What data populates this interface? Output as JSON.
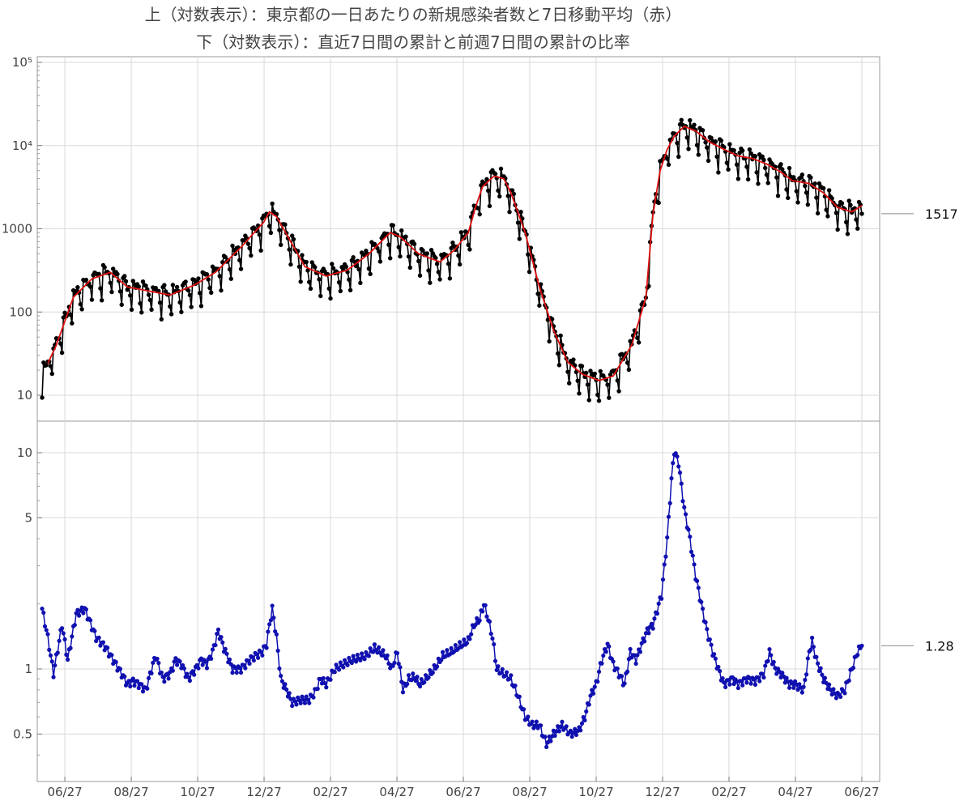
{
  "titles": {
    "top": "上（対数表示）：東京都の一日あたりの新規感染者数と7日移動平均（赤）",
    "bottom": "下（対数表示）：直近7日間の累計と前週7日間の累計の比率"
  },
  "colors": {
    "daily": "#000000",
    "average": "#e01010",
    "ratio": "#1010b0",
    "grid": "#d9d9d9",
    "frame": "#9a9a9a"
  },
  "chart_data": [
    {
      "type": "line",
      "name": "top",
      "yscale": "log",
      "ylim": [
        5,
        100000
      ],
      "x_days": 408,
      "x_ticks": [
        "06/27",
        "08/27",
        "10/27",
        "12/27",
        "02/27",
        "04/27",
        "06/27",
        "08/27",
        "10/27",
        "12/27",
        "02/27",
        "04/27",
        "06/27"
      ],
      "y_ticks": [
        "10",
        "100",
        "1000",
        "10⁴",
        "10⁵"
      ],
      "anchors_avg": [
        [
          0,
          17
        ],
        [
          10,
          40
        ],
        [
          22,
          150
        ],
        [
          35,
          250
        ],
        [
          48,
          300
        ],
        [
          60,
          200
        ],
        [
          90,
          160
        ],
        [
          107,
          210
        ],
        [
          122,
          300
        ],
        [
          140,
          600
        ],
        [
          156,
          1200
        ],
        [
          160,
          1600
        ],
        [
          165,
          1400
        ],
        [
          175,
          700
        ],
        [
          185,
          350
        ],
        [
          200,
          270
        ],
        [
          215,
          320
        ],
        [
          230,
          500
        ],
        [
          245,
          900
        ],
        [
          252,
          800
        ],
        [
          265,
          500
        ],
        [
          280,
          400
        ],
        [
          290,
          550
        ],
        [
          300,
          900
        ],
        [
          305,
          1800
        ],
        [
          310,
          3200
        ],
        [
          318,
          4300
        ],
        [
          325,
          4000
        ],
        [
          330,
          2700
        ],
        [
          340,
          900
        ],
        [
          350,
          200
        ],
        [
          360,
          60
        ],
        [
          370,
          25
        ],
        [
          380,
          18
        ],
        [
          392,
          15
        ],
        [
          402,
          17
        ],
        [
          415,
          40
        ],
        [
          425,
          150
        ],
        [
          430,
          1500
        ],
        [
          435,
          5000
        ],
        [
          440,
          9000
        ],
        [
          445,
          13000
        ],
        [
          452,
          17000
        ],
        [
          460,
          15000
        ],
        [
          470,
          11000
        ],
        [
          480,
          9000
        ],
        [
          490,
          7500
        ],
        [
          500,
          7000
        ],
        [
          510,
          6000
        ],
        [
          520,
          4800
        ],
        [
          528,
          3800
        ],
        [
          540,
          3500
        ],
        [
          550,
          2700
        ],
        [
          560,
          1800
        ],
        [
          570,
          1600
        ],
        [
          577,
          1900
        ]
      ],
      "end_label": "1517",
      "end_value": 1517
    },
    {
      "type": "line",
      "name": "bottom",
      "yscale": "log",
      "ylim": [
        0.3,
        12
      ],
      "y_ticks": [
        "0.5",
        "1",
        "5",
        "10"
      ],
      "anchors_ratio": [
        [
          0,
          1.9
        ],
        [
          4,
          1.4
        ],
        [
          8,
          0.95
        ],
        [
          14,
          1.6
        ],
        [
          18,
          1.1
        ],
        [
          24,
          1.8
        ],
        [
          30,
          1.9
        ],
        [
          38,
          1.4
        ],
        [
          45,
          1.25
        ],
        [
          50,
          1.1
        ],
        [
          56,
          0.95
        ],
        [
          60,
          0.85
        ],
        [
          64,
          0.88
        ],
        [
          68,
          0.85
        ],
        [
          73,
          0.8
        ],
        [
          78,
          1.05
        ],
        [
          80,
          1.15
        ],
        [
          85,
          0.9
        ],
        [
          90,
          0.95
        ],
        [
          94,
          1.1
        ],
        [
          98,
          1.05
        ],
        [
          103,
          0.9
        ],
        [
          108,
          1.0
        ],
        [
          112,
          1.1
        ],
        [
          116,
          1.05
        ],
        [
          120,
          1.2
        ],
        [
          124,
          1.5
        ],
        [
          128,
          1.25
        ],
        [
          134,
          1.0
        ],
        [
          140,
          1.0
        ],
        [
          146,
          1.1
        ],
        [
          150,
          1.15
        ],
        [
          155,
          1.2
        ],
        [
          158,
          1.3
        ],
        [
          160,
          1.6
        ],
        [
          162,
          1.9
        ],
        [
          165,
          1.4
        ],
        [
          168,
          0.9
        ],
        [
          172,
          0.8
        ],
        [
          176,
          0.7
        ],
        [
          182,
          0.72
        ],
        [
          188,
          0.72
        ],
        [
          192,
          0.78
        ],
        [
          196,
          0.9
        ],
        [
          200,
          0.85
        ],
        [
          206,
          1.0
        ],
        [
          212,
          1.05
        ],
        [
          218,
          1.1
        ],
        [
          222,
          1.12
        ],
        [
          228,
          1.15
        ],
        [
          234,
          1.25
        ],
        [
          238,
          1.2
        ],
        [
          242,
          1.15
        ],
        [
          246,
          1.0
        ],
        [
          250,
          1.2
        ],
        [
          254,
          0.8
        ],
        [
          258,
          0.9
        ],
        [
          262,
          0.92
        ],
        [
          266,
          0.85
        ],
        [
          270,
          0.9
        ],
        [
          276,
          1.0
        ],
        [
          282,
          1.15
        ],
        [
          288,
          1.2
        ],
        [
          294,
          1.28
        ],
        [
          300,
          1.35
        ],
        [
          304,
          1.6
        ],
        [
          308,
          1.7
        ],
        [
          311,
          2.0
        ],
        [
          314,
          1.7
        ],
        [
          317,
          1.4
        ],
        [
          320,
          1.0
        ],
        [
          325,
          0.95
        ],
        [
          330,
          0.9
        ],
        [
          335,
          0.75
        ],
        [
          340,
          0.6
        ],
        [
          345,
          0.55
        ],
        [
          350,
          0.55
        ],
        [
          355,
          0.45
        ],
        [
          360,
          0.5
        ],
        [
          366,
          0.55
        ],
        [
          372,
          0.5
        ],
        [
          378,
          0.52
        ],
        [
          382,
          0.6
        ],
        [
          386,
          0.75
        ],
        [
          390,
          0.85
        ],
        [
          394,
          1.1
        ],
        [
          398,
          1.3
        ],
        [
          402,
          1.05
        ],
        [
          406,
          0.95
        ],
        [
          410,
          0.85
        ],
        [
          414,
          1.2
        ],
        [
          418,
          1.1
        ],
        [
          422,
          1.3
        ],
        [
          426,
          1.5
        ],
        [
          430,
          1.6
        ],
        [
          436,
          2.2
        ],
        [
          440,
          4.0
        ],
        [
          443,
          7.5
        ],
        [
          445,
          10.2
        ],
        [
          448,
          9.0
        ],
        [
          452,
          5.5
        ],
        [
          456,
          4.0
        ],
        [
          460,
          2.7
        ],
        [
          464,
          2.0
        ],
        [
          468,
          1.5
        ],
        [
          472,
          1.2
        ],
        [
          476,
          1.0
        ],
        [
          480,
          0.85
        ],
        [
          486,
          0.9
        ],
        [
          490,
          0.85
        ],
        [
          496,
          0.9
        ],
        [
          502,
          0.88
        ],
        [
          508,
          0.95
        ],
        [
          512,
          1.2
        ],
        [
          516,
          1.0
        ],
        [
          520,
          0.95
        ],
        [
          526,
          0.85
        ],
        [
          530,
          0.85
        ],
        [
          536,
          0.8
        ],
        [
          540,
          1.2
        ],
        [
          542,
          1.35
        ],
        [
          545,
          1.1
        ],
        [
          550,
          0.9
        ],
        [
          555,
          0.8
        ],
        [
          560,
          0.75
        ],
        [
          565,
          0.8
        ],
        [
          570,
          1.0
        ],
        [
          574,
          1.2
        ],
        [
          577,
          1.28
        ]
      ],
      "end_label": "1.28",
      "end_value": 1.28
    }
  ]
}
